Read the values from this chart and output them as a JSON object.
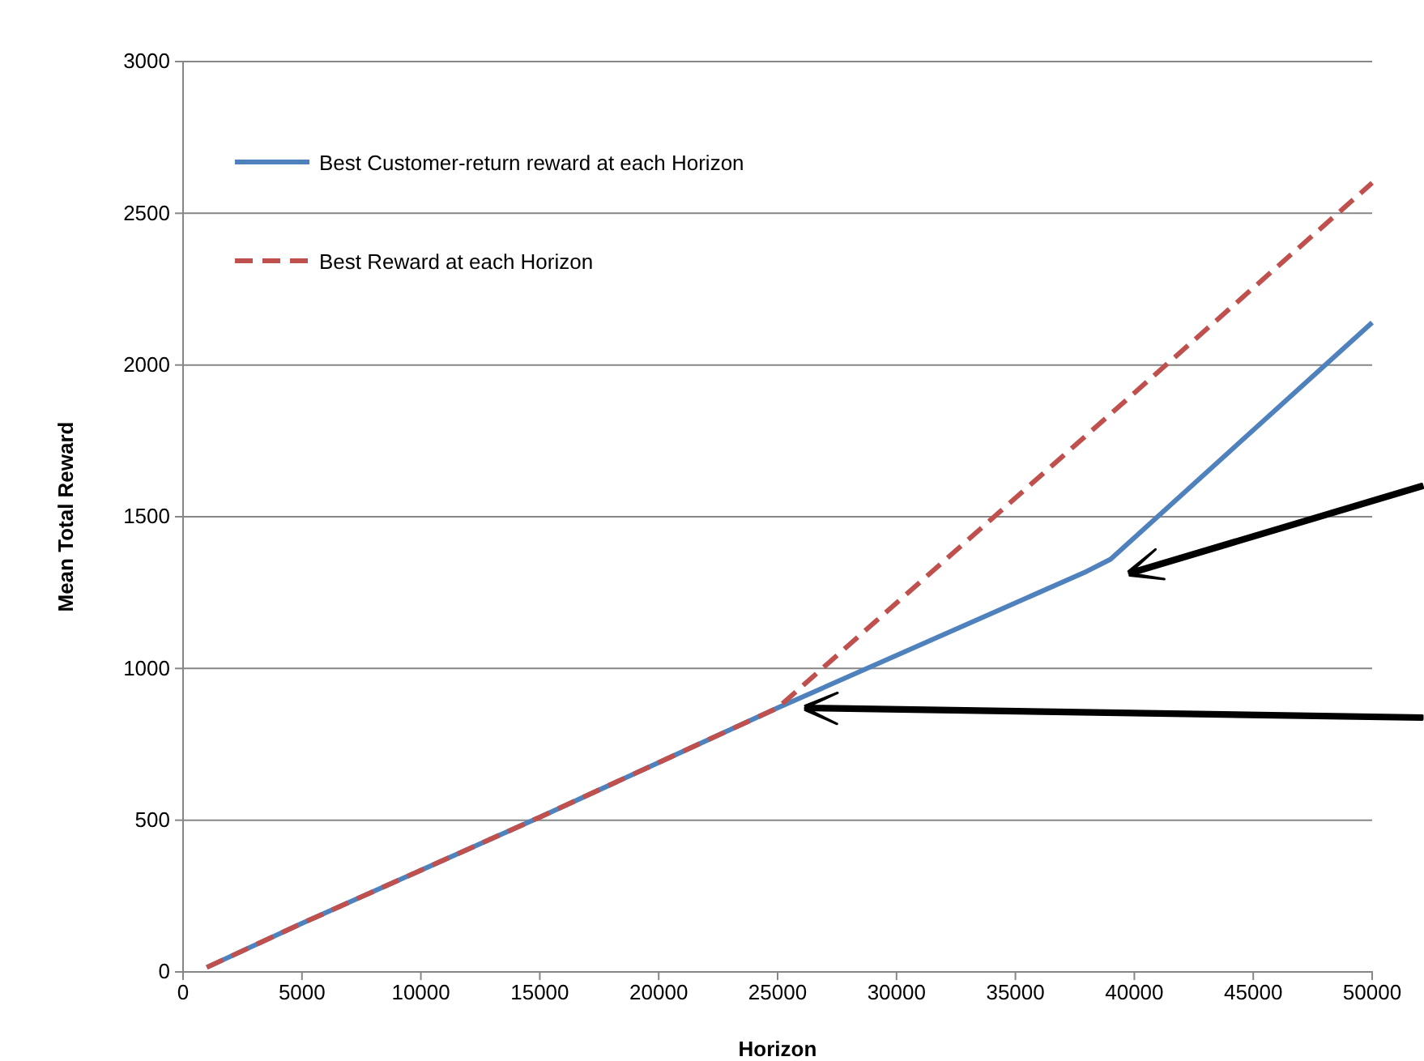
{
  "chart_data": {
    "type": "line",
    "xlabel": "Horizon",
    "ylabel": "Mean Total Reward",
    "xlim": [
      0,
      50000
    ],
    "xticks": [
      0,
      5000,
      10000,
      15000,
      20000,
      25000,
      30000,
      35000,
      40000,
      45000,
      50000
    ],
    "ylim": [
      0,
      3000
    ],
    "yticks": [
      0,
      500,
      1000,
      1500,
      2000,
      2500,
      3000
    ],
    "grid": "y",
    "legend": "top left",
    "series": [
      {
        "name": "Best Customer-return reward at each Horizon",
        "color": "#4f81bd",
        "line_style": "solid",
        "x": [
          1000,
          5000,
          10000,
          15000,
          20000,
          25000,
          38000,
          39000,
          50000
        ],
        "values": [
          15,
          160,
          335,
          510,
          690,
          870,
          1320,
          1360,
          2140
        ]
      },
      {
        "name": "Best Reward at each Horizon",
        "color": "#c0504d",
        "line_style": "dashed",
        "x": [
          1000,
          5000,
          10000,
          15000,
          20000,
          25000,
          50000
        ],
        "values": [
          15,
          160,
          335,
          510,
          690,
          870,
          2600
        ]
      }
    ]
  }
}
